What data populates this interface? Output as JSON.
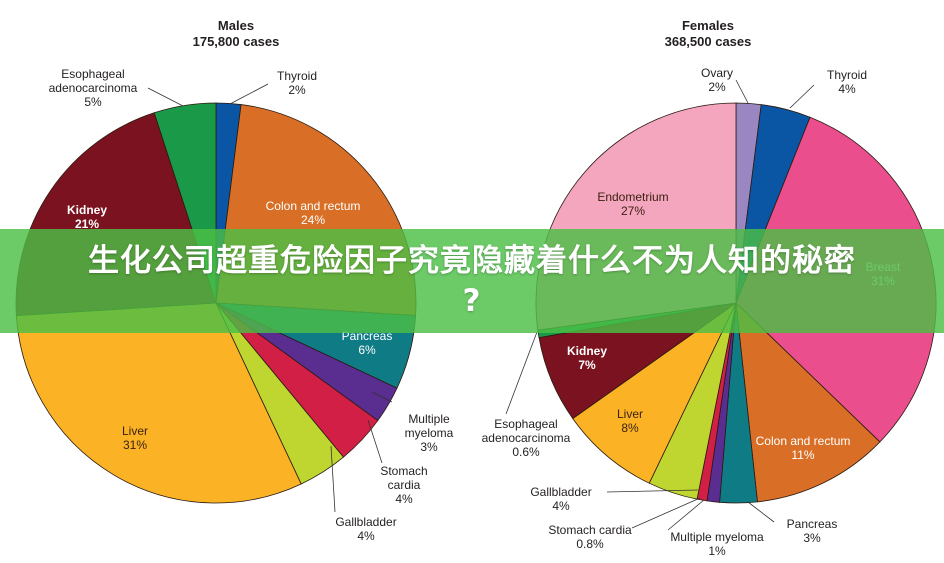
{
  "banner": {
    "title_line1": "生化公司超重危险因子究竟隐藏着什么不为人知的秘密",
    "title_line2": "?"
  },
  "chart_data": [
    {
      "type": "pie",
      "title": "Males",
      "subtitle": "175,800 cases",
      "total_cases": 175800,
      "start_angle_deg": 0,
      "direction": "clockwise",
      "center": [
        216,
        303
      ],
      "radius": 200,
      "slices": [
        {
          "label": "Thyroid",
          "value": 2,
          "display": "2%",
          "color": "#0b56a4"
        },
        {
          "label": "Colon and rectum",
          "value": 24,
          "display": "24%",
          "color": "#d96f26"
        },
        {
          "label": "Pancreas",
          "value": 6,
          "display": "6%",
          "color": "#0f7b85"
        },
        {
          "label": "Multiple myeloma",
          "value": 3,
          "display": "3%",
          "color": "#5a2d91"
        },
        {
          "label": "Stomach cardia",
          "value": 4,
          "display": "4%",
          "color": "#d21f45"
        },
        {
          "label": "Gallbladder",
          "value": 4,
          "display": "4%",
          "color": "#bfd630"
        },
        {
          "label": "Liver",
          "value": 31,
          "display": "31%",
          "color": "#fbb325"
        },
        {
          "label": "Kidney",
          "value": 21,
          "display": "21%",
          "color": "#7b1220"
        },
        {
          "label": "Esophageal adenocarcinoma",
          "value": 5,
          "display": "5%",
          "color": "#1a9a48"
        }
      ]
    },
    {
      "type": "pie",
      "title": "Females",
      "subtitle": "368,500 cases",
      "total_cases": 368500,
      "start_angle_deg": 0,
      "direction": "clockwise",
      "center": [
        264,
        303
      ],
      "radius": 200,
      "slices": [
        {
          "label": "Ovary",
          "value": 2,
          "display": "2%",
          "color": "#9a86c0"
        },
        {
          "label": "Thyroid",
          "value": 4,
          "display": "4%",
          "color": "#0b56a4"
        },
        {
          "label": "Breast",
          "value": 31,
          "display": "31%",
          "color": "#ea4e8d"
        },
        {
          "label": "Colon and rectum",
          "value": 11,
          "display": "11%",
          "color": "#d96f26"
        },
        {
          "label": "Pancreas",
          "value": 3,
          "display": "3%",
          "color": "#0f7b85"
        },
        {
          "label": "Multiple myeloma",
          "value": 1,
          "display": "1%",
          "color": "#5a2d91"
        },
        {
          "label": "Stomach cardia",
          "value": 0.8,
          "display": "0.8%",
          "color": "#d21f45"
        },
        {
          "label": "Gallbladder",
          "value": 4,
          "display": "4%",
          "color": "#bfd630"
        },
        {
          "label": "Liver",
          "value": 8,
          "display": "8%",
          "color": "#fbb325"
        },
        {
          "label": "Kidney",
          "value": 7,
          "display": "7%",
          "color": "#7b1220"
        },
        {
          "label": "Esophageal adenocarcinoma",
          "value": 0.6,
          "display": "0.6%",
          "color": "#1a9a48"
        },
        {
          "label": "Endometrium",
          "value": 27,
          "display": "27%",
          "color": "#f4a6be"
        }
      ]
    }
  ],
  "male": {
    "title": "Males",
    "subtitle": "175,800 cases",
    "labels": {
      "thyroid": {
        "name": "Thyroid",
        "pct": "2%"
      },
      "colon": {
        "name": "Colon and rectum",
        "pct": "24%"
      },
      "pancreas": {
        "name": "Pancreas",
        "pct": "6%"
      },
      "myeloma": {
        "name1": "Multiple",
        "name2": "myeloma",
        "pct": "3%"
      },
      "stomach": {
        "name1": "Stomach",
        "name2": "cardia",
        "pct": "4%"
      },
      "gallbladder": {
        "name": "Gallbladder",
        "pct": "4%"
      },
      "liver": {
        "name": "Liver",
        "pct": "31%"
      },
      "kidney": {
        "name": "Kidney",
        "pct": "21%"
      },
      "esophageal": {
        "name1": "Esophageal",
        "name2": "adenocarcinoma",
        "pct": "5%"
      }
    }
  },
  "female": {
    "title": "Females",
    "subtitle": "368,500 cases",
    "labels": {
      "ovary": {
        "name": "Ovary",
        "pct": "2%"
      },
      "thyroid": {
        "name": "Thyroid",
        "pct": "4%"
      },
      "breast": {
        "name": "Breast",
        "pct": "31%"
      },
      "colon": {
        "name": "Colon and rectum",
        "pct": "11%"
      },
      "pancreas": {
        "name": "Pancreas",
        "pct": "3%"
      },
      "myeloma": {
        "name": "Multiple myeloma",
        "pct": "1%"
      },
      "stomach": {
        "name": "Stomach cardia",
        "pct": "0.8%"
      },
      "gallbladder": {
        "name": "Gallbladder",
        "pct": "4%"
      },
      "liver": {
        "name": "Liver",
        "pct": "8%"
      },
      "kidney": {
        "name": "Kidney",
        "pct": "7%"
      },
      "esophageal": {
        "name1": "Esophageal",
        "name2": "adenocarcinoma",
        "pct": "0.6%"
      },
      "endometrium": {
        "name": "Endometrium",
        "pct": "27%"
      }
    }
  }
}
